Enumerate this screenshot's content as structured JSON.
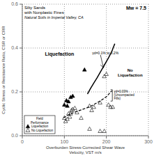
{
  "chart_data": {
    "type": "scatter",
    "title": "Silty Sands\nwith Nonplastic Fines",
    "subtitle": "Natural Soils in Imperial Valley, CA",
    "xlabel": "Overburden Stress-Corrected Shear Wave\nVelocity, VST m/s",
    "ylabel": "Cyclic Stress or Resistance Ratio, CSR or CRR",
    "xlim": [
      0,
      300
    ],
    "ylim": [
      0,
      0.6
    ],
    "xticks": [
      0,
      100,
      200,
      300
    ],
    "yticks": [
      {
        "value": 0,
        "label": "0.0"
      },
      0.2,
      0.4,
      0.6
    ],
    "grid": true,
    "legend": "lower left",
    "legend_title": "Field\nPerformance",
    "series": [
      {
        "type": "line",
        "line_style": "solid",
        "color": "#000000",
        "x": [
          155,
          162,
          170,
          178,
          187,
          196,
          205,
          213,
          220
        ],
        "values": [
          0.19,
          0.215,
          0.24,
          0.265,
          0.295,
          0.325,
          0.355,
          0.385,
          0.42
        ]
      },
      {
        "type": "line",
        "line_style": "dashed",
        "color": "#000000",
        "x": [
          98,
          110,
          125,
          140,
          155,
          170,
          185,
          200,
          213
        ],
        "values": [
          0.082,
          0.095,
          0.108,
          0.118,
          0.128,
          0.142,
          0.158,
          0.178,
          0.205
        ]
      },
      {
        "type": "scatter",
        "name": "Liquefaction",
        "marker": "triangle",
        "color": "#000000",
        "x": [
          100,
          105,
          107,
          110,
          115,
          120,
          148
        ],
        "values": [
          0.14,
          0.16,
          0.135,
          0.155,
          0.175,
          0.18,
          0.3
        ]
      },
      {
        "type": "scatter",
        "name": "No Liquefaction",
        "marker": "open_triangle",
        "color": "#000000",
        "x": [
          100,
          103,
          107,
          110,
          113,
          115,
          117,
          120,
          125,
          130,
          140,
          160,
          165,
          170,
          185,
          195,
          200,
          205,
          210,
          215,
          160,
          185,
          195
        ],
        "values": [
          0.08,
          0.065,
          0.075,
          0.1,
          0.085,
          0.1,
          0.115,
          0.12,
          0.125,
          0.105,
          0.08,
          0.135,
          0.115,
          0.13,
          0.15,
          0.27,
          0.28,
          0.14,
          0.13,
          0.13,
          0.03,
          0.02,
          0.02
        ]
      }
    ],
    "annotations": [
      {
        "text": "Mw = 7.5"
      },
      {
        "text": "Liquefaction"
      },
      {
        "text": "No\nLiquefaction"
      },
      {
        "text": "γd=0.1% to 0.2%",
        "x": 166,
        "y": 0.378,
        "arrow_x": 193,
        "arrow_y": 0.31
      },
      {
        "text": "γd=0.03%\n(Uncompacted\nFills)",
        "x": 218,
        "y": 0.185,
        "bracket_x": 210,
        "bracket_y": [
          0.158,
          0.21
        ]
      }
    ]
  }
}
